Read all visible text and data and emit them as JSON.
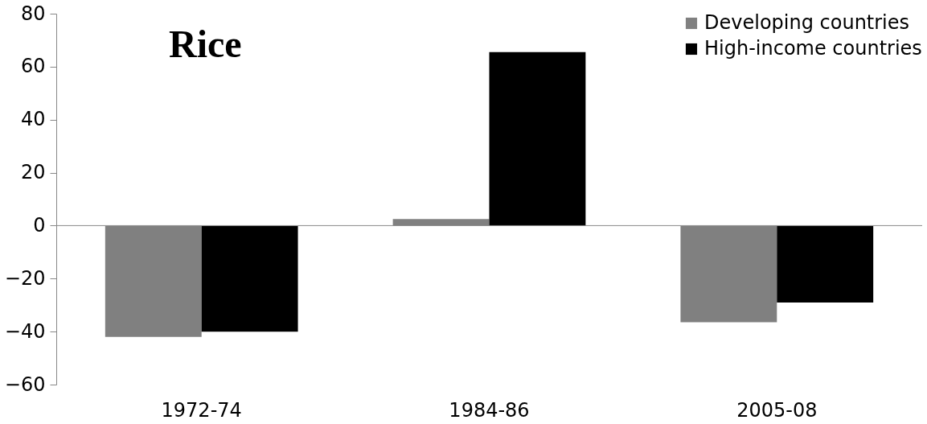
{
  "chart_data": {
    "type": "bar",
    "title": "Rice",
    "categories": [
      "1972-74",
      "1984-86",
      "2005-08"
    ],
    "series": [
      {
        "name": "Developing countries",
        "color": "#808080",
        "values": [
          -42,
          2.5,
          -36.5
        ]
      },
      {
        "name": "High-income countries",
        "color": "#000000",
        "values": [
          -40,
          65.5,
          -29
        ]
      }
    ],
    "ylim": [
      -60,
      80
    ],
    "yticks": [
      -60,
      -40,
      -20,
      0,
      20,
      40,
      60,
      80
    ],
    "legend": "top right"
  }
}
